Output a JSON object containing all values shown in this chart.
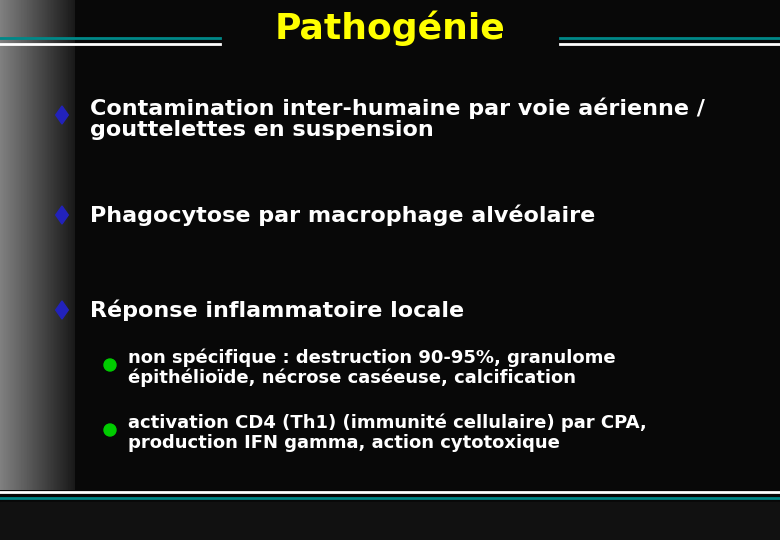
{
  "title": "Pathogénie",
  "title_color": "#FFFF00",
  "title_fontsize": 26,
  "bg_color": "#080808",
  "header_line_teal": "#008888",
  "header_line_white": "#ffffff",
  "footer_line_teal": "#008888",
  "footer_line_white": "#ffffff",
  "diamond_color": "#2222bb",
  "bullet_color": "#00cc00",
  "main_text_color": "#ffffff",
  "main_text_fontsize": 16,
  "sub_text_fontsize": 13,
  "bullet1_line1": "Contamination inter-humaine par voie aérienne /",
  "bullet1_line2": "gouttelettes en suspension",
  "bullet2": "Phagocytose par macrophage alvéolaire",
  "bullet3": "Réponse inflammatoire locale",
  "sub_bullet1_line1": "non spécifique : destruction 90-95%, granulome",
  "sub_bullet1_line2": "épithélioïde, nécrose caséeuse, calcification",
  "sub_bullet2_line1": "activation CD4 (Th1) (immunité cellulaire) par CPA,",
  "sub_bullet2_line2": "production IFN gamma, action cytotoxique"
}
